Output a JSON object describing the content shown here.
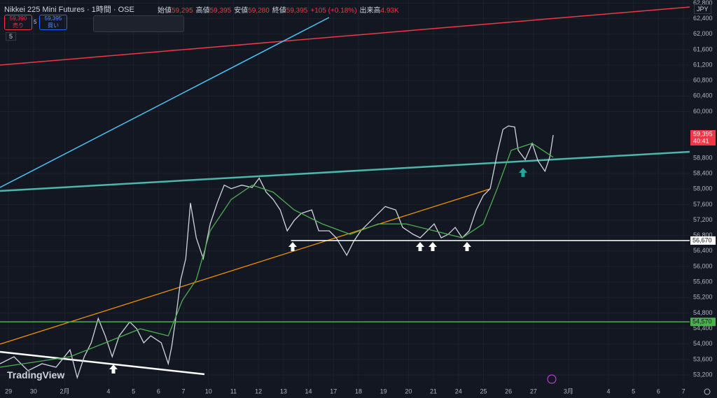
{
  "header": {
    "symbol": "Nikkei 225 Mini Futures · 1時間 · OSE",
    "ohlc": [
      {
        "label": "始値",
        "value": "59,295"
      },
      {
        "label": "高値",
        "value": "59,395"
      },
      {
        "label": "安値",
        "value": "59,280"
      },
      {
        "label": "終値",
        "value": "59,395"
      }
    ],
    "change": "+105 (+0.18%)",
    "volume": {
      "label": "出来高",
      "value": "4.93K"
    },
    "sell": {
      "price": "59,390",
      "label": "売り"
    },
    "spread": "5",
    "buy": {
      "price": "59,395",
      "label": "買い"
    },
    "indicator": "5",
    "currency": "JPY",
    "logo": "TradingView"
  },
  "chart_data": {
    "type": "line",
    "xlim": [
      -0.34,
      27.25
    ],
    "ylim": [
      52930,
      62880
    ],
    "xticks": [
      {
        "value": 0,
        "label": "29"
      },
      {
        "value": 1,
        "label": "30"
      },
      {
        "value": 2.25,
        "label": "2月"
      },
      {
        "value": 4,
        "label": "4"
      },
      {
        "value": 5,
        "label": "5"
      },
      {
        "value": 6,
        "label": "6"
      },
      {
        "value": 7,
        "label": "7"
      },
      {
        "value": 8,
        "label": "10"
      },
      {
        "value": 9,
        "label": "11"
      },
      {
        "value": 10,
        "label": "12"
      },
      {
        "value": 11,
        "label": "13"
      },
      {
        "value": 12,
        "label": "14"
      },
      {
        "value": 13,
        "label": "17"
      },
      {
        "value": 14,
        "label": "18"
      },
      {
        "value": 15,
        "label": "19"
      },
      {
        "value": 16,
        "label": "20"
      },
      {
        "value": 17,
        "label": "21"
      },
      {
        "value": 18,
        "label": "24"
      },
      {
        "value": 19,
        "label": "25"
      },
      {
        "value": 20,
        "label": "26"
      },
      {
        "value": 21,
        "label": "27"
      },
      {
        "value": 22.4,
        "label": "3月"
      },
      {
        "value": 24,
        "label": "4"
      },
      {
        "value": 25,
        "label": "5"
      },
      {
        "value": 26,
        "label": "6"
      },
      {
        "value": 27,
        "label": "7"
      }
    ],
    "yticks": [
      {
        "value": 53200,
        "label": "53,200"
      },
      {
        "value": 53600,
        "label": "53,600"
      },
      {
        "value": 54000,
        "label": "54,000"
      },
      {
        "value": 54400,
        "label": "54,400"
      },
      {
        "value": 54800,
        "label": "54,800"
      },
      {
        "value": 55200,
        "label": "55,200"
      },
      {
        "value": 55600,
        "label": "55,600"
      },
      {
        "value": 56000,
        "label": "56,000"
      },
      {
        "value": 56400,
        "label": "56,400"
      },
      {
        "value": 56800,
        "label": "56,800"
      },
      {
        "value": 57200,
        "label": "57,200"
      },
      {
        "value": 57600,
        "label": "57,600"
      },
      {
        "value": 58000,
        "label": "58,000"
      },
      {
        "value": 58400,
        "label": "58,400"
      },
      {
        "value": 58800,
        "label": "58,800"
      },
      {
        "value": 60000,
        "label": "60,000"
      },
      {
        "value": 60400,
        "label": "60,400"
      },
      {
        "value": 60800,
        "label": "60,800"
      },
      {
        "value": 61200,
        "label": "61,200"
      },
      {
        "value": 61600,
        "label": "61,600"
      },
      {
        "value": 62000,
        "label": "62,000"
      },
      {
        "value": 62400,
        "label": "62,400"
      },
      {
        "value": 62800,
        "label": "62,800"
      }
    ],
    "grid": true,
    "series": [
      {
        "color": "#d1d4dc",
        "x": [
          -0.34,
          0.22,
          0.78,
          1.34,
          1.9,
          2.46,
          2.75,
          3.03,
          3.31,
          3.59,
          3.87,
          4.15,
          4.43,
          4.85,
          5.13,
          5.41,
          5.69,
          6.11,
          6.39,
          6.53,
          6.67,
          6.89,
          7.09,
          7.28,
          7.51,
          7.79,
          8.07,
          8.35,
          8.63,
          8.91,
          9.33,
          9.75,
          10.03,
          10.31,
          10.59,
          10.87,
          11.15,
          11.43,
          11.71,
          12.13,
          12.41,
          12.83,
          13.11,
          13.53,
          13.81,
          14.09,
          14.37,
          14.79,
          15.07,
          15.49,
          15.77,
          16.19,
          16.47,
          16.75,
          17.03,
          17.31,
          17.59,
          17.87,
          18.15,
          18.43,
          18.71,
          18.99,
          19.27,
          19.55,
          19.78,
          20.0,
          20.25,
          20.39,
          20.67,
          20.95,
          21.18,
          21.46,
          21.65,
          21.79
        ],
        "values": [
          53490,
          53670,
          53310,
          53490,
          53400,
          53850,
          53130,
          53670,
          54030,
          54660,
          54210,
          53670,
          54210,
          54570,
          54390,
          54030,
          54210,
          54030,
          53490,
          53940,
          54570,
          55660,
          56200,
          57640,
          56740,
          56200,
          57100,
          57640,
          58100,
          58010,
          58100,
          58040,
          58280,
          57920,
          57730,
          57460,
          56920,
          57190,
          57370,
          57460,
          56920,
          56920,
          56740,
          56290,
          56650,
          56920,
          57100,
          57370,
          57550,
          57460,
          57010,
          56830,
          56740,
          56920,
          57100,
          56740,
          56830,
          57010,
          56740,
          56920,
          57460,
          57830,
          58010,
          58910,
          59540,
          59630,
          59600,
          59000,
          58760,
          59180,
          58730,
          58460,
          58820,
          59395
        ]
      },
      {
        "color": "#4caf50",
        "x": [
          -0.34,
          2.46,
          3.87,
          5.27,
          6.39,
          6.95,
          7.51,
          8.07,
          8.91,
          9.75,
          10.59,
          11.43,
          12.55,
          13.67,
          14.79,
          15.91,
          17.03,
          18.15,
          18.99,
          19.55,
          20.11,
          20.95,
          21.79
        ],
        "values": [
          53400,
          53670,
          54030,
          54390,
          54210,
          55120,
          55660,
          56920,
          57730,
          58100,
          57920,
          57460,
          57100,
          56830,
          57100,
          57100,
          56920,
          56740,
          57100,
          58010,
          59000,
          59180,
          58820
        ]
      }
    ],
    "price_lines": [
      {
        "value": 56670,
        "label": "56,670",
        "color": "#ffffff",
        "from": 11.3
      },
      {
        "value": 54570,
        "label": "54,570",
        "color": "#4caf50",
        "from": -0.34
      }
    ],
    "last_price": {
      "value": 59395,
      "label": "59,395"
    },
    "countdown": "40:41"
  }
}
